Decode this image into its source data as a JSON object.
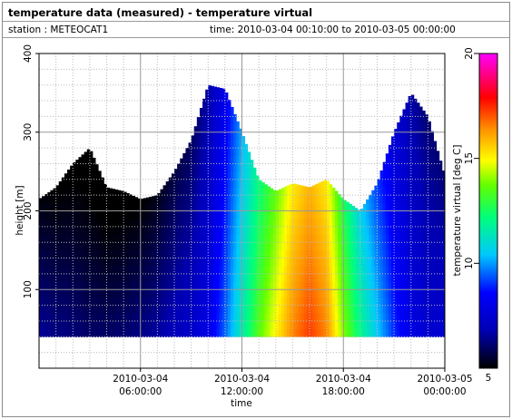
{
  "header": {
    "title": "temperature data (measured) - temperature virtual",
    "station": "station : METEOCAT1",
    "time_range": "time: 2010-03-04 00:10:00 to 2010-03-05 00:00:00"
  },
  "chart_data": {
    "type": "heatmap",
    "title": "temperature data (measured) - temperature virtual",
    "xlabel": "time",
    "ylabel": "height [m]",
    "colorbar_label": "temperature virtual [deg C]",
    "xlim": [
      "2010-03-04 00:00:00",
      "2010-03-05 00:00:00"
    ],
    "ylim": [
      0,
      400
    ],
    "zlim": [
      5,
      20
    ],
    "x_ticks": [
      {
        "value": "2010-03-04 06:00:00",
        "date": "2010-03-04",
        "time": "06:00:00"
      },
      {
        "value": "2010-03-04 12:00:00",
        "date": "2010-03-04",
        "time": "12:00:00"
      },
      {
        "value": "2010-03-04 18:00:00",
        "date": "2010-03-04",
        "time": "18:00:00"
      },
      {
        "value": "2010-03-05 00:00:00",
        "date": "2010-03-05",
        "time": "00:00:00"
      }
    ],
    "y_ticks": [
      100,
      200,
      300,
      400
    ],
    "colorbar_ticks": [
      10,
      15,
      20
    ],
    "colorbar_min_label": "5",
    "grid": true,
    "bottom_height": 40,
    "sample_interval_min": 10,
    "series": [
      {
        "time": "2010-03-04 00:00",
        "top_height": 215,
        "near_surface_temp": 6.5
      },
      {
        "time": "2010-03-04 01:00",
        "top_height": 230,
        "near_surface_temp": 6.3
      },
      {
        "time": "2010-03-04 02:00",
        "top_height": 260,
        "near_surface_temp": 6.2
      },
      {
        "time": "2010-03-04 03:00",
        "top_height": 280,
        "near_surface_temp": 6.0
      },
      {
        "time": "2010-03-04 04:00",
        "top_height": 230,
        "near_surface_temp": 6.0
      },
      {
        "time": "2010-03-04 05:00",
        "top_height": 225,
        "near_surface_temp": 6.1
      },
      {
        "time": "2010-03-04 06:00",
        "top_height": 215,
        "near_surface_temp": 6.3
      },
      {
        "time": "2010-03-04 07:00",
        "top_height": 220,
        "near_surface_temp": 6.6
      },
      {
        "time": "2010-03-04 08:00",
        "top_height": 250,
        "near_surface_temp": 7.0
      },
      {
        "time": "2010-03-04 09:00",
        "top_height": 290,
        "near_surface_temp": 7.3
      },
      {
        "time": "2010-03-04 10:00",
        "top_height": 360,
        "near_surface_temp": 8.0
      },
      {
        "time": "2010-03-04 11:00",
        "top_height": 355,
        "near_surface_temp": 9.5
      },
      {
        "time": "2010-03-04 12:00",
        "top_height": 300,
        "near_surface_temp": 11.5
      },
      {
        "time": "2010-03-04 13:00",
        "top_height": 240,
        "near_surface_temp": 13.5
      },
      {
        "time": "2010-03-04 14:00",
        "top_height": 225,
        "near_surface_temp": 15.0
      },
      {
        "time": "2010-03-04 15:00",
        "top_height": 235,
        "near_surface_temp": 16.5
      },
      {
        "time": "2010-03-04 16:00",
        "top_height": 230,
        "near_surface_temp": 17.3
      },
      {
        "time": "2010-03-04 17:00",
        "top_height": 240,
        "near_surface_temp": 16.5
      },
      {
        "time": "2010-03-04 18:00",
        "top_height": 215,
        "near_surface_temp": 14.0
      },
      {
        "time": "2010-03-04 19:00",
        "top_height": 200,
        "near_surface_temp": 12.0
      },
      {
        "time": "2010-03-04 20:00",
        "top_height": 235,
        "near_surface_temp": 10.5
      },
      {
        "time": "2010-03-04 21:00",
        "top_height": 300,
        "near_surface_temp": 9.0
      },
      {
        "time": "2010-03-04 22:00",
        "top_height": 350,
        "near_surface_temp": 8.0
      },
      {
        "time": "2010-03-04 23:00",
        "top_height": 320,
        "near_surface_temp": 7.5
      },
      {
        "time": "2010-03-05 00:00",
        "top_height": 245,
        "near_surface_temp": 7.5
      }
    ]
  }
}
